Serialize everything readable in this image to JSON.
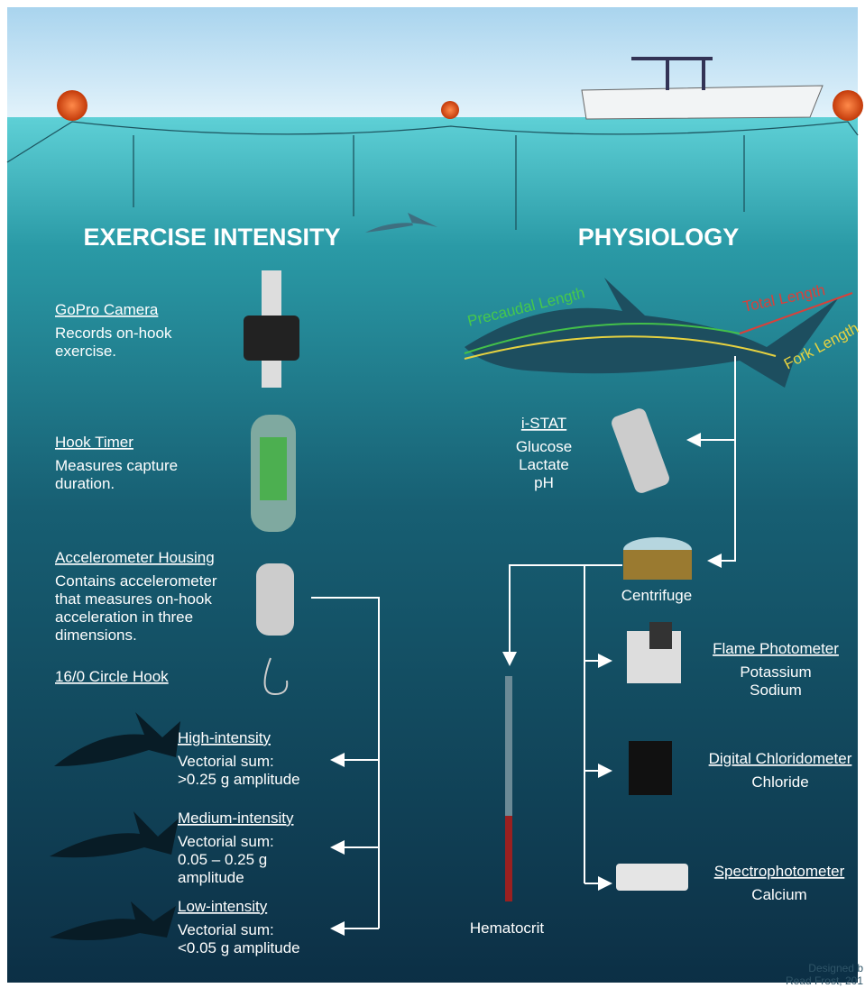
{
  "left_heading": "EXERCISE INTENSITY",
  "right_heading": "PHYSIOLOGY",
  "equipment": [
    {
      "title": "GoPro Camera",
      "lines": [
        "Records on-hook",
        "exercise."
      ]
    },
    {
      "title": "Hook Timer",
      "lines": [
        "Measures capture",
        "duration."
      ]
    },
    {
      "title": "Accelerometer Housing",
      "lines": [
        "Contains accelerometer",
        "that measures on-hook",
        "acceleration in three",
        "dimensions."
      ]
    },
    {
      "title": "16/0 Circle Hook",
      "lines": []
    }
  ],
  "intensities": [
    {
      "title": "High-intensity",
      "lines": [
        "Vectorial sum:",
        ">0.25 g amplitude"
      ]
    },
    {
      "title": "Medium-intensity",
      "lines": [
        "Vectorial sum:",
        "0.05 – 0.25 g",
        "amplitude"
      ]
    },
    {
      "title": "Low-intensity",
      "lines": [
        "Vectorial sum:",
        "<0.05 g amplitude"
      ]
    }
  ],
  "lengths": {
    "precaudal": "Precaudal Length",
    "total": "Total Length",
    "fork": "Fork Length"
  },
  "istat": {
    "title": "i-STAT",
    "lines": [
      "Glucose",
      "Lactate",
      "pH"
    ]
  },
  "centrifuge": "Centrifuge",
  "instruments": [
    {
      "title": "Flame Photometer",
      "lines": [
        "Potassium",
        "Sodium"
      ]
    },
    {
      "title": "Digital Chloridometer",
      "lines": [
        "Chloride"
      ]
    },
    {
      "title": "Spectrophotometer",
      "lines": [
        "Calcium"
      ]
    }
  ],
  "hematocrit": "Hematocrit",
  "credit": [
    "Designed b",
    "Read Frost, 201"
  ]
}
